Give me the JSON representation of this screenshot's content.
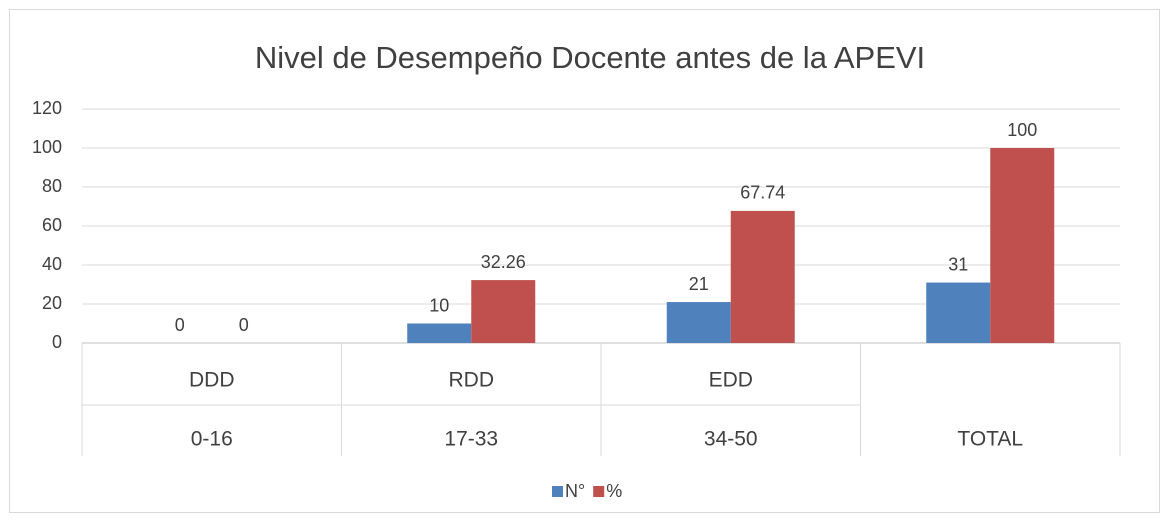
{
  "chart_data": {
    "type": "bar",
    "title": "Nivel de Desempeño Docente antes de la APEVI",
    "categories": [
      "DDD",
      "RDD",
      "EDD",
      null
    ],
    "subcategories": [
      "0-16",
      "17-33",
      "34-50",
      "TOTAL"
    ],
    "series": [
      {
        "name": "N°",
        "color": "#4f81bd",
        "values": [
          0,
          10,
          21,
          31
        ]
      },
      {
        "name": "%",
        "color": "#c0504d",
        "values": [
          0,
          32.26,
          67.74,
          100
        ]
      }
    ],
    "ylim": [
      0,
      120
    ],
    "yticks": [
      0,
      20,
      40,
      60,
      80,
      100,
      120
    ],
    "grid": true,
    "legend": "bottom"
  }
}
